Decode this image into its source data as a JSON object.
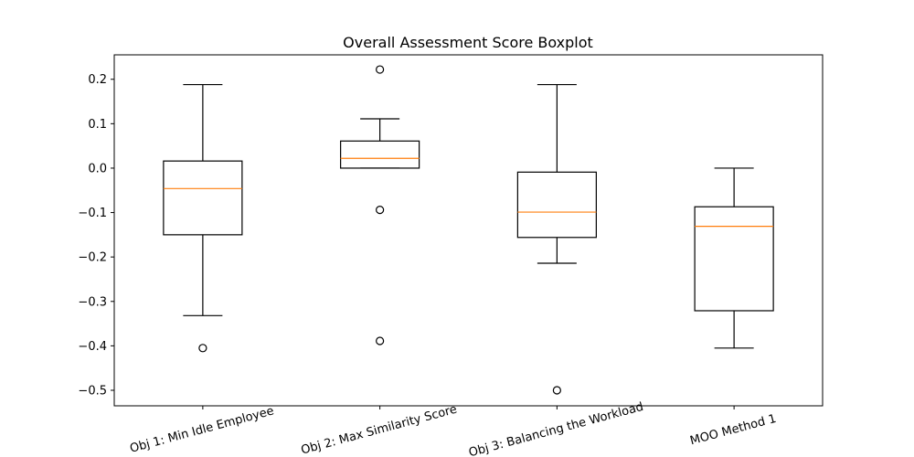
{
  "chart_data": {
    "type": "boxplot",
    "title": "Overall Assessment Score Boxplot",
    "xlabel": "",
    "ylabel": "",
    "ylim": [
      -0.535,
      0.255
    ],
    "yticks": [
      0.2,
      0.1,
      0.0,
      -0.1,
      -0.2,
      -0.3,
      -0.4,
      -0.5
    ],
    "ytick_labels": [
      "0.2",
      "0.1",
      "0.0",
      "−0.1",
      "−0.2",
      "−0.3",
      "−0.4",
      "−0.5"
    ],
    "categories": [
      "Obj 1: Min Idle Employee",
      "Obj 2: Max Similarity Score",
      "Obj 3: Balancing the Workload",
      "MOO Method 1"
    ],
    "boxes": [
      {
        "whisker_low": -0.332,
        "q1": -0.15,
        "median": -0.046,
        "q3": 0.016,
        "whisker_high": 0.188,
        "outliers": [
          -0.405
        ]
      },
      {
        "whisker_low": 0.0,
        "q1": 0.0,
        "median": 0.022,
        "q3": 0.061,
        "whisker_high": 0.111,
        "outliers": [
          0.222,
          -0.094,
          -0.389
        ]
      },
      {
        "whisker_low": -0.214,
        "q1": -0.156,
        "median": -0.099,
        "q3": -0.009,
        "whisker_high": 0.188,
        "outliers": [
          -0.5
        ]
      },
      {
        "whisker_low": -0.405,
        "q1": -0.321,
        "median": -0.131,
        "q3": -0.087,
        "whisker_high": 0.0,
        "outliers": []
      }
    ],
    "grid": false,
    "colors": {
      "box": "#000000",
      "median": "#ff7f0e",
      "outlier": "#000000"
    }
  }
}
